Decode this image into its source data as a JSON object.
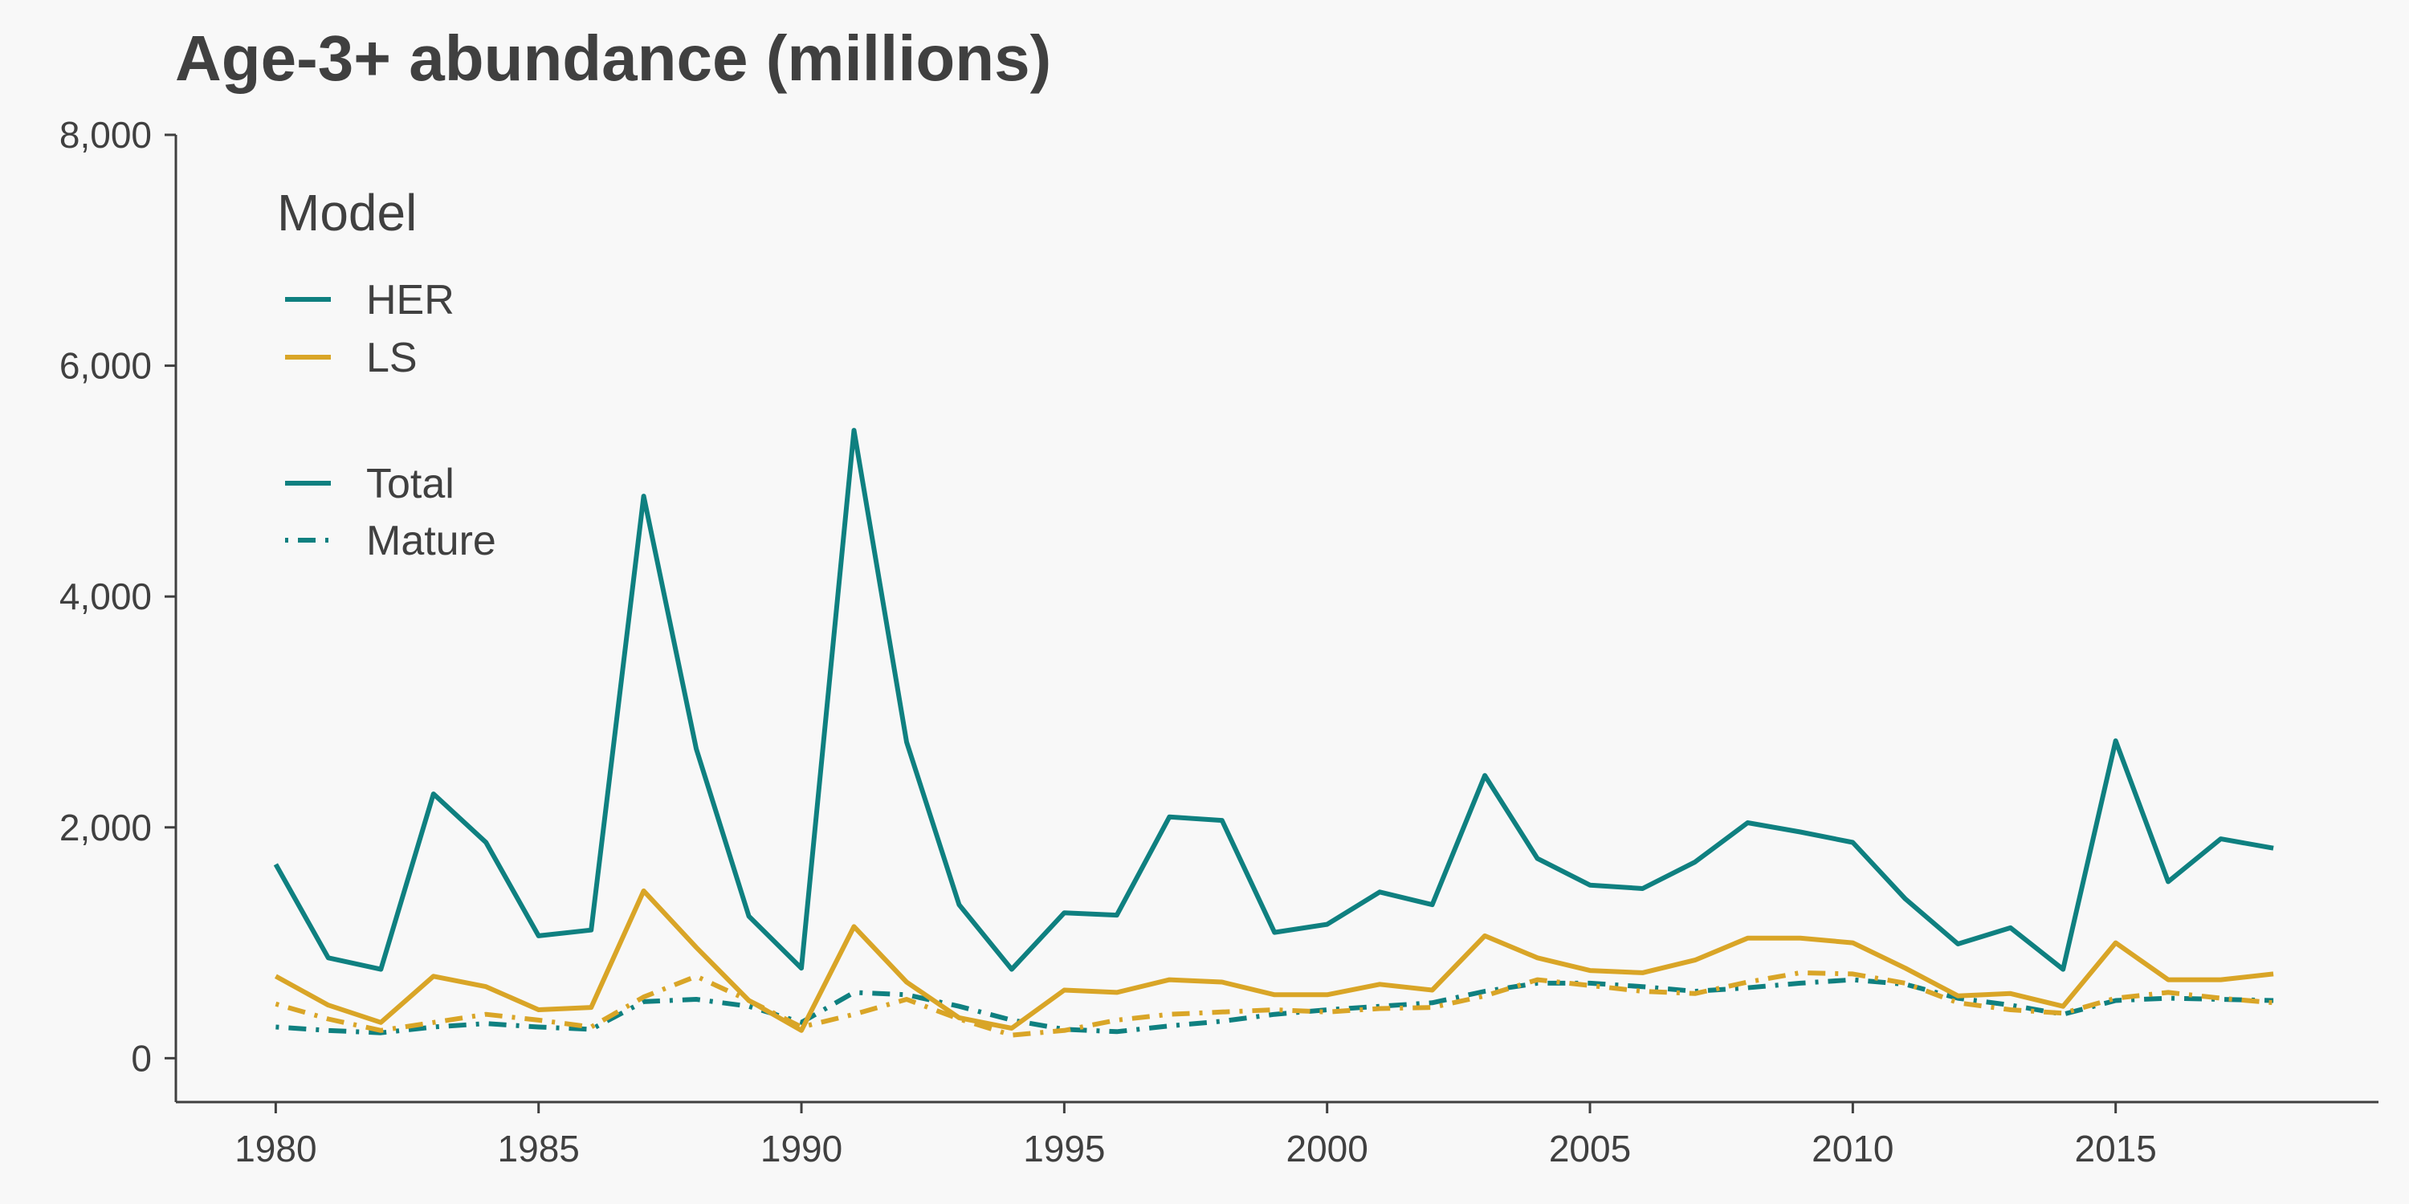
{
  "chart_data": {
    "type": "line",
    "title": "Age-3+ abundance (millions)",
    "xlabel": "",
    "ylabel": "",
    "xlim": [
      1978.1,
      2020
    ],
    "ylim": [
      -380,
      8000
    ],
    "x_ticks": [
      1980,
      1985,
      1990,
      1995,
      2000,
      2005,
      2010,
      2015
    ],
    "x_tick_labels": [
      "1980",
      "1985",
      "1990",
      "1995",
      "2000",
      "2005",
      "2010",
      "2015"
    ],
    "y_ticks": [
      0,
      2000,
      4000,
      6000,
      8000
    ],
    "y_tick_labels": [
      "0",
      "2,000",
      "4,000",
      "6,000",
      "8,000"
    ],
    "grid": false,
    "legend": {
      "placement": "top-left",
      "title": "Model",
      "model_entries": [
        {
          "label": "HER",
          "color": "#0f8080"
        },
        {
          "label": "LS",
          "color": "#d9a527"
        }
      ],
      "type_entries": [
        {
          "label": "Total",
          "style": "solid",
          "color": "#0f8080"
        },
        {
          "label": "Mature",
          "style": "dotdash",
          "color": "#0f8080"
        }
      ]
    },
    "x": [
      1980,
      1981,
      1982,
      1983,
      1984,
      1985,
      1986,
      1987,
      1988,
      1989,
      1990,
      1991,
      1992,
      1993,
      1994,
      1995,
      1996,
      1997,
      1998,
      1999,
      2000,
      2001,
      2002,
      2003,
      2004,
      2005,
      2006,
      2007,
      2008,
      2009,
      2010,
      2011,
      2012,
      2013,
      2014,
      2015,
      2016,
      2017,
      2018
    ],
    "series": [
      {
        "model": "HER",
        "type": "Total",
        "color": "#0f8080",
        "style": "solid",
        "values": [
          1680,
          870,
          770,
          2290,
          1870,
          1060,
          1110,
          4870,
          2680,
          1230,
          780,
          5440,
          2740,
          1330,
          770,
          1260,
          1240,
          2090,
          2060,
          1090,
          1160,
          1440,
          1330,
          2450,
          1730,
          1500,
          1470,
          1700,
          2040,
          1960,
          1870,
          1380,
          990,
          1130,
          770,
          2750,
          1530,
          1900,
          1820
        ]
      },
      {
        "model": "HER",
        "type": "Mature",
        "color": "#0f8080",
        "style": "dotdash",
        "values": [
          270,
          240,
          220,
          270,
          300,
          270,
          250,
          490,
          510,
          450,
          310,
          570,
          550,
          450,
          330,
          250,
          230,
          280,
          320,
          380,
          420,
          450,
          480,
          580,
          650,
          650,
          620,
          580,
          610,
          650,
          680,
          640,
          520,
          460,
          380,
          500,
          520,
          510,
          500
        ]
      },
      {
        "model": "LS",
        "type": "Total",
        "color": "#d9a527",
        "style": "solid",
        "values": [
          710,
          460,
          310,
          710,
          620,
          420,
          440,
          1450,
          960,
          500,
          240,
          1140,
          660,
          350,
          260,
          590,
          570,
          680,
          660,
          550,
          550,
          640,
          590,
          1060,
          870,
          760,
          740,
          850,
          1040,
          1040,
          1000,
          780,
          540,
          560,
          450,
          1000,
          680,
          680,
          730
        ]
      },
      {
        "model": "LS",
        "type": "Mature",
        "color": "#d9a527",
        "style": "dotdash",
        "values": [
          470,
          340,
          240,
          310,
          380,
          330,
          270,
          530,
          710,
          500,
          270,
          380,
          510,
          340,
          200,
          240,
          330,
          380,
          400,
          420,
          400,
          430,
          440,
          540,
          680,
          630,
          580,
          560,
          660,
          740,
          730,
          650,
          480,
          420,
          390,
          520,
          570,
          520,
          480
        ]
      }
    ]
  }
}
